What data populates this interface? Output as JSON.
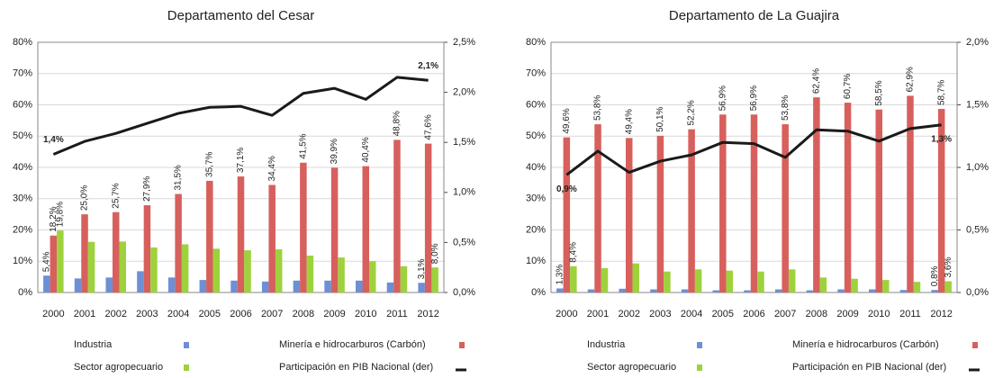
{
  "chart_data": [
    {
      "type": "bar",
      "title": "Departamento del Cesar",
      "categories": [
        "2000",
        "2001",
        "2002",
        "2003",
        "2004",
        "2005",
        "2006",
        "2007",
        "2008",
        "2009",
        "2010",
        "2011",
        "2012"
      ],
      "ylim": [
        0,
        80
      ],
      "yticks": [
        {
          "value": 0,
          "label": "0%"
        },
        {
          "value": 10,
          "label": "10%"
        },
        {
          "value": 20,
          "label": "20%"
        },
        {
          "value": 30,
          "label": "30%"
        },
        {
          "value": 40,
          "label": "40%"
        },
        {
          "value": 50,
          "label": "50%"
        },
        {
          "value": 60,
          "label": "60%"
        },
        {
          "value": 70,
          "label": "70%"
        },
        {
          "value": 80,
          "label": "80%"
        }
      ],
      "y2lim": [
        0,
        2.5
      ],
      "y2ticks": [
        {
          "value": 0,
          "label": "0,0%"
        },
        {
          "value": 0.5,
          "label": "0,5%"
        },
        {
          "value": 1,
          "label": "1,0%"
        },
        {
          "value": 1.5,
          "label": "1,5%"
        },
        {
          "value": 2,
          "label": "2,0%"
        },
        {
          "value": 2.5,
          "label": "2,5%"
        }
      ],
      "grid": true,
      "series": [
        {
          "name": "Industria",
          "type": "bar",
          "color": "#6d8fd4",
          "values": [
            5.4,
            4.5,
            4.8,
            6.8,
            4.8,
            4.0,
            3.8,
            3.5,
            3.8,
            3.8,
            3.8,
            3.2,
            3.1
          ],
          "value_labels": [
            "5,4%",
            null,
            null,
            null,
            null,
            null,
            null,
            null,
            null,
            null,
            null,
            null,
            "3,1%"
          ]
        },
        {
          "name": "Minería e hidrocarburos (Carbón)",
          "type": "bar",
          "color": "#d7605c",
          "values": [
            18.2,
            25.0,
            25.7,
            27.9,
            31.5,
            35.7,
            37.1,
            34.4,
            41.5,
            39.9,
            40.4,
            48.8,
            47.6
          ],
          "value_labels": [
            "18,2%",
            "25,0%",
            "25,7%",
            "27,9%",
            "31,5%",
            "35,7%",
            "37,1%",
            "34,4%",
            "41,5%",
            "39,9%",
            "40,4%",
            "48,8%",
            "47,6%"
          ]
        },
        {
          "name": "Sector agropecuario",
          "type": "bar",
          "color": "#9ed23c",
          "values": [
            19.8,
            16.2,
            16.3,
            14.4,
            15.4,
            14.0,
            13.5,
            13.8,
            11.8,
            11.2,
            10.0,
            8.4,
            8.0
          ],
          "value_labels": [
            "19,8%",
            null,
            null,
            null,
            null,
            null,
            null,
            null,
            null,
            null,
            null,
            null,
            "8,0%"
          ]
        },
        {
          "name": "Participación en PIB Nacional (der)",
          "type": "line",
          "axis": "y2",
          "color": "#1a1a1a",
          "values": [
            1.38,
            1.51,
            1.59,
            1.69,
            1.79,
            1.85,
            1.86,
            1.77,
            1.99,
            2.04,
            1.93,
            2.15,
            2.12
          ],
          "value_labels": [
            "1,4%",
            null,
            null,
            null,
            null,
            null,
            null,
            null,
            null,
            null,
            null,
            null,
            "2,1%"
          ]
        }
      ]
    },
    {
      "type": "bar",
      "title": "Departamento de La Guajira",
      "categories": [
        "2000",
        "2001",
        "2002",
        "2003",
        "2004",
        "2005",
        "2006",
        "2007",
        "2008",
        "2009",
        "2010",
        "2011",
        "2012"
      ],
      "ylim": [
        0,
        80
      ],
      "yticks": [
        {
          "value": 0,
          "label": "0%"
        },
        {
          "value": 10,
          "label": "10%"
        },
        {
          "value": 20,
          "label": "20%"
        },
        {
          "value": 30,
          "label": "30%"
        },
        {
          "value": 40,
          "label": "40%"
        },
        {
          "value": 50,
          "label": "50%"
        },
        {
          "value": 60,
          "label": "60%"
        },
        {
          "value": 70,
          "label": "70%"
        },
        {
          "value": 80,
          "label": "80%"
        }
      ],
      "y2lim": [
        0,
        2
      ],
      "y2ticks": [
        {
          "value": 0,
          "label": "0,0%"
        },
        {
          "value": 0.5,
          "label": "0,5%"
        },
        {
          "value": 1,
          "label": "1,0%"
        },
        {
          "value": 1.5,
          "label": "1,5%"
        },
        {
          "value": 2,
          "label": "2,0%"
        }
      ],
      "grid": true,
      "series": [
        {
          "name": "Industria",
          "type": "bar",
          "color": "#6d8fd4",
          "values": [
            1.3,
            1.0,
            1.2,
            1.0,
            1.0,
            0.7,
            0.7,
            1.0,
            0.7,
            1.0,
            1.0,
            0.8,
            0.8
          ],
          "value_labels": [
            "1,3%",
            null,
            null,
            null,
            null,
            null,
            null,
            null,
            null,
            null,
            null,
            null,
            "0,8%"
          ]
        },
        {
          "name": "Minería e hidrocarburos (Carbón)",
          "type": "bar",
          "color": "#d7605c",
          "values": [
            49.6,
            53.8,
            49.4,
            50.1,
            52.2,
            56.9,
            56.9,
            53.8,
            62.4,
            60.7,
            58.5,
            62.9,
            58.7
          ],
          "value_labels": [
            "49,6%",
            "53,8%",
            "49,4%",
            "50,1%",
            "52,2%",
            "56,9%",
            "56,9%",
            "53,8%",
            "62,4%",
            "60,7%",
            "58,5%",
            "62,9%",
            "58,7%"
          ]
        },
        {
          "name": "Sector agropecuario",
          "type": "bar",
          "color": "#9ed23c",
          "values": [
            8.4,
            7.8,
            9.3,
            6.7,
            7.4,
            7.0,
            6.7,
            7.4,
            4.8,
            4.4,
            4.0,
            3.4,
            3.6
          ],
          "value_labels": [
            "8,4%",
            null,
            null,
            null,
            null,
            null,
            null,
            null,
            null,
            null,
            null,
            null,
            "3,6%"
          ]
        },
        {
          "name": "Participación en PIB Nacional (der)",
          "type": "line",
          "axis": "y2",
          "color": "#1a1a1a",
          "values": [
            0.94,
            1.13,
            0.96,
            1.05,
            1.1,
            1.2,
            1.19,
            1.08,
            1.3,
            1.29,
            1.21,
            1.31,
            1.34
          ],
          "value_labels": [
            "0,9%",
            null,
            null,
            null,
            null,
            null,
            null,
            null,
            null,
            null,
            null,
            null,
            "1,3%"
          ]
        }
      ]
    }
  ]
}
